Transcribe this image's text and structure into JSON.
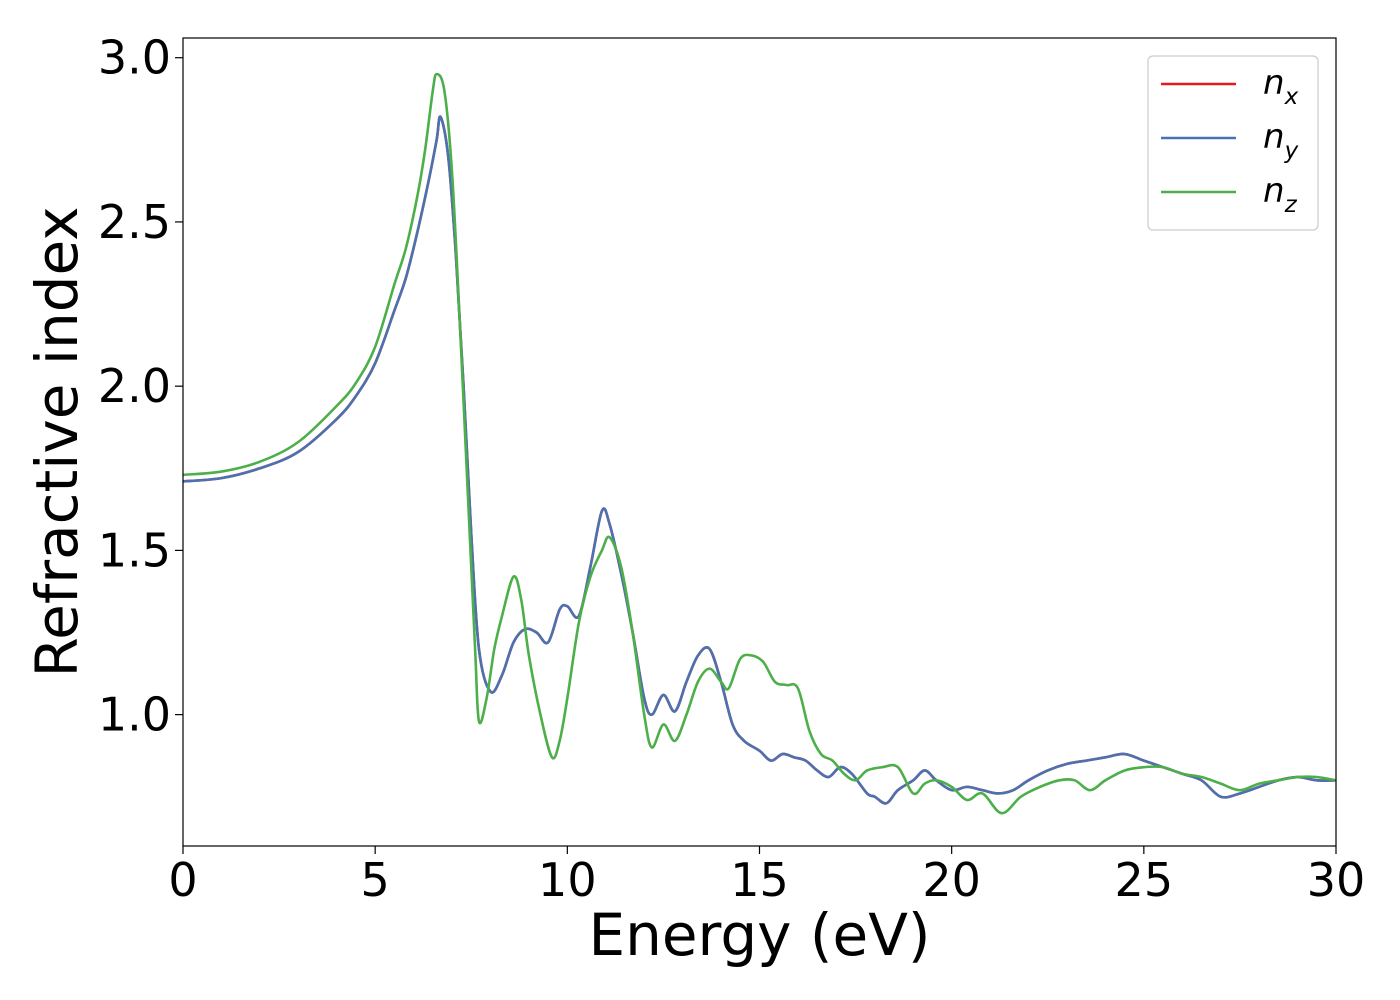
{
  "chart_data": {
    "type": "line",
    "title": "",
    "xlabel": "Energy (eV)",
    "ylabel": "Refractive index",
    "xlim": [
      0,
      30
    ],
    "ylim": [
      0.6,
      3.06
    ],
    "xticks": [
      0,
      5,
      10,
      15,
      20,
      25,
      30
    ],
    "xtick_labels": [
      "0",
      "5",
      "10",
      "15",
      "20",
      "25",
      "30"
    ],
    "yticks": [
      1.0,
      1.5,
      2.0,
      2.5,
      3.0
    ],
    "ytick_labels": [
      "1.0",
      "1.5",
      "2.0",
      "2.5",
      "3.0"
    ],
    "grid": false,
    "legend_position": "top-right",
    "series": [
      {
        "name": "n",
        "subscript": "x",
        "color": "#e41a1c",
        "x": [
          0,
          1,
          2,
          3,
          4,
          4.5,
          5,
          5.5,
          5.8,
          6.1,
          6.4,
          6.6,
          6.7,
          6.9,
          7.1,
          7.3,
          7.5,
          7.7,
          8.0,
          8.3,
          8.6,
          8.9,
          9.2,
          9.5,
          9.8,
          10.0,
          10.3,
          10.6,
          10.9,
          11.1,
          11.4,
          11.7,
          12.0,
          12.2,
          12.5,
          12.8,
          13.1,
          13.4,
          13.7,
          14.0,
          14.3,
          14.6,
          15.0,
          15.3,
          15.6,
          15.9,
          16.2,
          16.5,
          16.8,
          17.1,
          17.4,
          17.8,
          18.0,
          18.3,
          18.6,
          19.0,
          19.3,
          19.6,
          20.0,
          20.4,
          20.8,
          21.2,
          21.6,
          22.0,
          22.5,
          23.0,
          23.5,
          24.0,
          24.5,
          25.0,
          25.5,
          26.0,
          26.5,
          27.0,
          27.5,
          28.0,
          28.5,
          29.0,
          29.5,
          30.0
        ],
        "y": [
          1.71,
          1.72,
          1.75,
          1.8,
          1.9,
          1.97,
          2.07,
          2.23,
          2.33,
          2.47,
          2.63,
          2.75,
          2.82,
          2.7,
          2.4,
          2.0,
          1.55,
          1.2,
          1.07,
          1.12,
          1.22,
          1.26,
          1.25,
          1.22,
          1.32,
          1.33,
          1.3,
          1.45,
          1.62,
          1.58,
          1.43,
          1.25,
          1.05,
          1.0,
          1.06,
          1.01,
          1.1,
          1.18,
          1.2,
          1.1,
          0.97,
          0.92,
          0.89,
          0.86,
          0.88,
          0.87,
          0.86,
          0.83,
          0.81,
          0.84,
          0.82,
          0.76,
          0.75,
          0.73,
          0.77,
          0.8,
          0.83,
          0.8,
          0.77,
          0.78,
          0.77,
          0.76,
          0.77,
          0.8,
          0.83,
          0.85,
          0.86,
          0.87,
          0.88,
          0.86,
          0.84,
          0.82,
          0.8,
          0.75,
          0.76,
          0.78,
          0.8,
          0.81,
          0.8,
          0.8
        ]
      },
      {
        "name": "n",
        "subscript": "y",
        "color": "#4b72b0",
        "x": [
          0,
          1,
          2,
          3,
          4,
          4.5,
          5,
          5.5,
          5.8,
          6.1,
          6.4,
          6.6,
          6.7,
          6.9,
          7.1,
          7.3,
          7.5,
          7.7,
          8.0,
          8.3,
          8.6,
          8.9,
          9.2,
          9.5,
          9.8,
          10.0,
          10.3,
          10.6,
          10.9,
          11.1,
          11.4,
          11.7,
          12.0,
          12.2,
          12.5,
          12.8,
          13.1,
          13.4,
          13.7,
          14.0,
          14.3,
          14.6,
          15.0,
          15.3,
          15.6,
          15.9,
          16.2,
          16.5,
          16.8,
          17.1,
          17.4,
          17.8,
          18.0,
          18.3,
          18.6,
          19.0,
          19.3,
          19.6,
          20.0,
          20.4,
          20.8,
          21.2,
          21.6,
          22.0,
          22.5,
          23.0,
          23.5,
          24.0,
          24.5,
          25.0,
          25.5,
          26.0,
          26.5,
          27.0,
          27.5,
          28.0,
          28.5,
          29.0,
          29.5,
          30.0
        ],
        "y": [
          1.71,
          1.72,
          1.75,
          1.8,
          1.9,
          1.97,
          2.07,
          2.23,
          2.33,
          2.47,
          2.63,
          2.75,
          2.82,
          2.7,
          2.4,
          2.0,
          1.55,
          1.2,
          1.07,
          1.12,
          1.22,
          1.26,
          1.25,
          1.22,
          1.32,
          1.33,
          1.3,
          1.45,
          1.62,
          1.58,
          1.43,
          1.25,
          1.05,
          1.0,
          1.06,
          1.01,
          1.1,
          1.18,
          1.2,
          1.1,
          0.97,
          0.92,
          0.89,
          0.86,
          0.88,
          0.87,
          0.86,
          0.83,
          0.81,
          0.84,
          0.82,
          0.76,
          0.75,
          0.73,
          0.77,
          0.8,
          0.83,
          0.8,
          0.77,
          0.78,
          0.77,
          0.76,
          0.77,
          0.8,
          0.83,
          0.85,
          0.86,
          0.87,
          0.88,
          0.86,
          0.84,
          0.82,
          0.8,
          0.75,
          0.76,
          0.78,
          0.8,
          0.81,
          0.8,
          0.8
        ]
      },
      {
        "name": "n",
        "subscript": "z",
        "color": "#4daf4a",
        "x": [
          0,
          1,
          2,
          3,
          4,
          4.5,
          5,
          5.5,
          5.8,
          6.1,
          6.3,
          6.5,
          6.6,
          6.8,
          7.0,
          7.2,
          7.4,
          7.6,
          7.7,
          7.9,
          8.1,
          8.3,
          8.6,
          8.8,
          9.0,
          9.3,
          9.6,
          9.8,
          10.0,
          10.3,
          10.6,
          10.9,
          11.1,
          11.4,
          11.7,
          12.0,
          12.2,
          12.5,
          12.8,
          13.1,
          13.4,
          13.7,
          14.0,
          14.2,
          14.5,
          14.8,
          15.1,
          15.4,
          15.7,
          16.0,
          16.3,
          16.6,
          16.9,
          17.2,
          17.5,
          17.8,
          18.2,
          18.6,
          19.0,
          19.3,
          19.6,
          20.0,
          20.4,
          20.8,
          21.3,
          21.8,
          22.3,
          22.8,
          23.2,
          23.6,
          24.0,
          24.5,
          25.0,
          25.5,
          26.0,
          26.5,
          27.0,
          27.5,
          28.0,
          28.5,
          29.0,
          29.5,
          30.0
        ],
        "y": [
          1.73,
          1.74,
          1.77,
          1.83,
          1.94,
          2.01,
          2.12,
          2.31,
          2.42,
          2.58,
          2.72,
          2.9,
          2.95,
          2.9,
          2.65,
          2.2,
          1.7,
          1.2,
          0.98,
          1.05,
          1.2,
          1.3,
          1.42,
          1.35,
          1.18,
          1.0,
          0.87,
          0.92,
          1.05,
          1.28,
          1.42,
          1.5,
          1.54,
          1.45,
          1.25,
          1.0,
          0.9,
          0.97,
          0.92,
          1.0,
          1.1,
          1.14,
          1.1,
          1.08,
          1.17,
          1.18,
          1.16,
          1.1,
          1.09,
          1.08,
          0.95,
          0.88,
          0.86,
          0.82,
          0.8,
          0.83,
          0.84,
          0.84,
          0.76,
          0.79,
          0.8,
          0.78,
          0.74,
          0.76,
          0.7,
          0.75,
          0.78,
          0.8,
          0.8,
          0.77,
          0.8,
          0.83,
          0.84,
          0.84,
          0.82,
          0.81,
          0.79,
          0.77,
          0.79,
          0.8,
          0.81,
          0.81,
          0.8
        ]
      }
    ]
  }
}
